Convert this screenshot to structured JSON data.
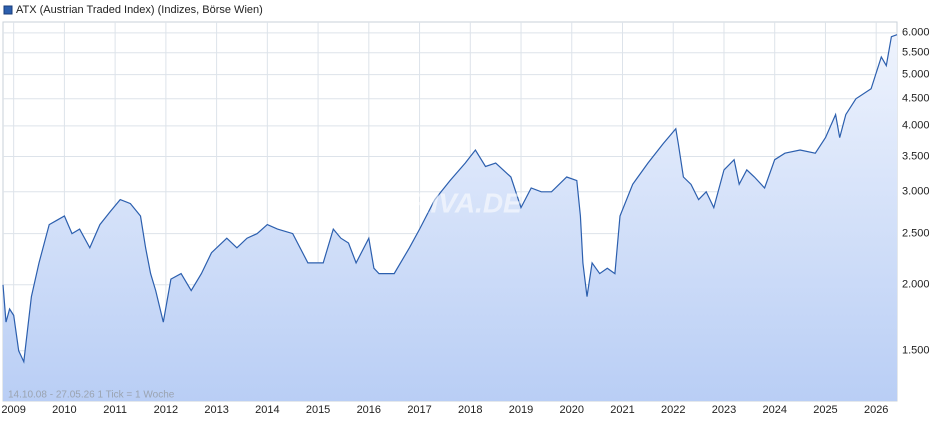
{
  "chart_data": {
    "type": "line",
    "title": "ATX (Austrian Traded Index) (Indizes, Börse Wien)",
    "subtitle": "14.10.08 - 27.05.26   1 Tick = 1 Woche",
    "watermark": "ARIVA.DE",
    "log_scale_y": true,
    "grid": true,
    "xlim": [
      2008.79,
      2026.41
    ],
    "xticks": [
      2009,
      2010,
      2011,
      2012,
      2013,
      2014,
      2015,
      2016,
      2017,
      2018,
      2019,
      2020,
      2021,
      2022,
      2023,
      2024,
      2025,
      2026
    ],
    "ylim": [
      1205,
      6290
    ],
    "yticks": [
      {
        "value": 1500,
        "label": "1.500"
      },
      {
        "value": 2000,
        "label": "2.000"
      },
      {
        "value": 2500,
        "label": "2.500"
      },
      {
        "value": 3000,
        "label": "3.000"
      },
      {
        "value": 3500,
        "label": "3.500"
      },
      {
        "value": 4000,
        "label": "4.000"
      },
      {
        "value": 4500,
        "label": "4.500"
      },
      {
        "value": 5000,
        "label": "5.000"
      },
      {
        "value": 5500,
        "label": "5.500"
      },
      {
        "value": 6000,
        "label": "6.000"
      }
    ],
    "series": [
      {
        "name": "ATX (Austrian Traded Index) (Indizes, Börse Wien)",
        "color": "#2c5fae",
        "x": [
          2008.79,
          2008.85,
          2008.92,
          2009.0,
          2009.1,
          2009.2,
          2009.35,
          2009.5,
          2009.7,
          2009.85,
          2010.0,
          2010.15,
          2010.3,
          2010.5,
          2010.7,
          2010.9,
          2011.1,
          2011.3,
          2011.5,
          2011.6,
          2011.7,
          2011.8,
          2011.95,
          2012.1,
          2012.3,
          2012.5,
          2012.7,
          2012.9,
          2013.2,
          2013.4,
          2013.6,
          2013.8,
          2014.0,
          2014.2,
          2014.5,
          2014.8,
          2015.1,
          2015.3,
          2015.45,
          2015.6,
          2015.75,
          2016.0,
          2016.1,
          2016.2,
          2016.5,
          2016.8,
          2017.0,
          2017.3,
          2017.6,
          2017.9,
          2018.1,
          2018.3,
          2018.5,
          2018.8,
          2019.0,
          2019.2,
          2019.4,
          2019.6,
          2019.9,
          2020.1,
          2020.17,
          2020.22,
          2020.3,
          2020.4,
          2020.55,
          2020.7,
          2020.85,
          2020.95,
          2021.2,
          2021.5,
          2021.8,
          2022.05,
          2022.1,
          2022.2,
          2022.35,
          2022.5,
          2022.65,
          2022.8,
          2023.0,
          2023.2,
          2023.3,
          2023.45,
          2023.6,
          2023.8,
          2024.0,
          2024.2,
          2024.5,
          2024.8,
          2025.0,
          2025.2,
          2025.28,
          2025.4,
          2025.6,
          2025.9,
          2026.1,
          2026.2,
          2026.3,
          2026.41
        ],
        "values": [
          2000,
          1700,
          1800,
          1750,
          1500,
          1430,
          1900,
          2200,
          2600,
          2650,
          2700,
          2500,
          2550,
          2350,
          2600,
          2750,
          2900,
          2850,
          2700,
          2350,
          2100,
          1950,
          1700,
          2050,
          2100,
          1950,
          2100,
          2300,
          2450,
          2350,
          2450,
          2500,
          2600,
          2550,
          2500,
          2200,
          2200,
          2550,
          2450,
          2400,
          2200,
          2450,
          2150,
          2100,
          2100,
          2350,
          2550,
          2900,
          3150,
          3400,
          3600,
          3350,
          3400,
          3200,
          2800,
          3050,
          3000,
          3000,
          3200,
          3150,
          2700,
          2200,
          1900,
          2200,
          2100,
          2150,
          2100,
          2700,
          3100,
          3400,
          3700,
          3950,
          3700,
          3200,
          3100,
          2900,
          3000,
          2800,
          3300,
          3450,
          3100,
          3300,
          3200,
          3050,
          3450,
          3550,
          3600,
          3550,
          3800,
          4200,
          3800,
          4200,
          4500,
          4700,
          5400,
          5200,
          5900,
          5950
        ]
      }
    ]
  }
}
